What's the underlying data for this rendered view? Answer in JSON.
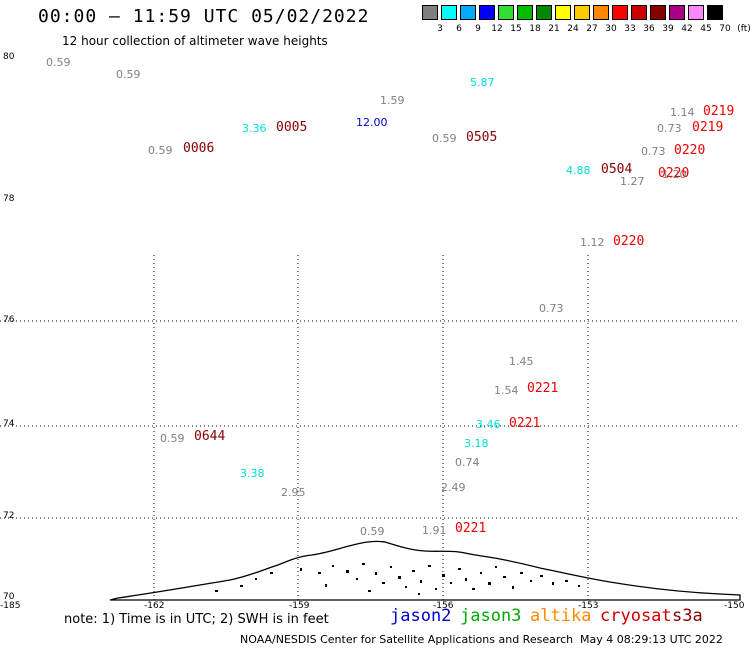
{
  "title": "00:00 – 11:59 UTC 05/02/2022",
  "subtitle": "12 hour collection of altimeter wave heights",
  "legend": {
    "labels": [
      "3",
      "6",
      "9",
      "12",
      "15",
      "18",
      "21",
      "24",
      "27",
      "30",
      "33",
      "36",
      "39",
      "42",
      "45",
      "70",
      "(ft)"
    ],
    "colors": [
      "#7f7f7f",
      "#00ffff",
      "#00aaff",
      "#0000ff",
      "#33dd33",
      "#00bb00",
      "#008800",
      "#ffff00",
      "#ffcc00",
      "#ff8800",
      "#ff0000",
      "#cc0000",
      "#880000",
      "#aa0088",
      "#ff88ff",
      "#000000"
    ]
  },
  "lat_labels": [
    "80",
    "78",
    "76",
    "74",
    "72",
    "70"
  ],
  "lon_labels": [
    "-185",
    "-162",
    "-159",
    "-156",
    "-153",
    "-150"
  ],
  "observations": [
    {
      "text": "0.59",
      "color": "#808080"
    },
    {
      "text": "0.59",
      "color": "#808080"
    },
    {
      "text": "5.87",
      "color": "#00dddd"
    },
    {
      "text": "1.59",
      "color": "#808080"
    },
    {
      "text": "1.14",
      "color": "#808080"
    },
    {
      "text": "3.36",
      "color": "#00dddd"
    },
    {
      "text": "12.00",
      "color": "#0000cc"
    },
    {
      "text": "0.59",
      "color": "#808080"
    },
    {
      "text": "0.73",
      "color": "#808080"
    },
    {
      "text": "0.59",
      "color": "#808080"
    },
    {
      "text": "0.73",
      "color": "#808080"
    },
    {
      "text": "4.88",
      "color": "#00dddd"
    },
    {
      "text": "1.20",
      "color": "#808080"
    },
    {
      "text": "1.27",
      "color": "#808080"
    },
    {
      "text": "1.12",
      "color": "#808080"
    },
    {
      "text": "0.73",
      "color": "#808080"
    },
    {
      "text": "1.45",
      "color": "#808080"
    },
    {
      "text": "1.54",
      "color": "#808080"
    },
    {
      "text": "3.46",
      "color": "#00dddd"
    },
    {
      "text": "0.59",
      "color": "#808080"
    },
    {
      "text": "3.18",
      "color": "#00dddd"
    },
    {
      "text": "0.74",
      "color": "#808080"
    },
    {
      "text": "3.38",
      "color": "#00dddd"
    },
    {
      "text": "2.49",
      "color": "#808080"
    },
    {
      "text": "2.95",
      "color": "#808080"
    },
    {
      "text": "0.59",
      "color": "#808080"
    },
    {
      "text": "1.91",
      "color": "#808080"
    }
  ],
  "times": [
    {
      "text": "0005",
      "color": "#880000"
    },
    {
      "text": "0006",
      "color": "#880000"
    },
    {
      "text": "0505",
      "color": "#880000"
    },
    {
      "text": "0219",
      "color": "#ee0000"
    },
    {
      "text": "0219",
      "color": "#ee0000"
    },
    {
      "text": "0220",
      "color": "#ee0000"
    },
    {
      "text": "0504",
      "color": "#880000"
    },
    {
      "text": "0220",
      "color": "#ee0000"
    },
    {
      "text": "0220",
      "color": "#ee0000"
    },
    {
      "text": "0221",
      "color": "#ee0000"
    },
    {
      "text": "0221",
      "color": "#ee0000"
    },
    {
      "text": "0644",
      "color": "#880000"
    },
    {
      "text": "0221",
      "color": "#ee0000"
    }
  ],
  "note": "note: 1) Time is in UTC; 2) SWH is in feet",
  "satellites": [
    {
      "name": "jason2",
      "color": "#0000cc"
    },
    {
      "name": "jason3",
      "color": "#00aa00"
    },
    {
      "name": "altika",
      "color": "#ff8800"
    },
    {
      "name": "cryosat",
      "color": "#cc0000"
    },
    {
      "name": "s3a",
      "color": "#880000"
    }
  ],
  "credit": "NOAA/NESDIS Center for Satellite Applications and Research",
  "timestamp": "May  4 08:29:13 UTC 2022"
}
